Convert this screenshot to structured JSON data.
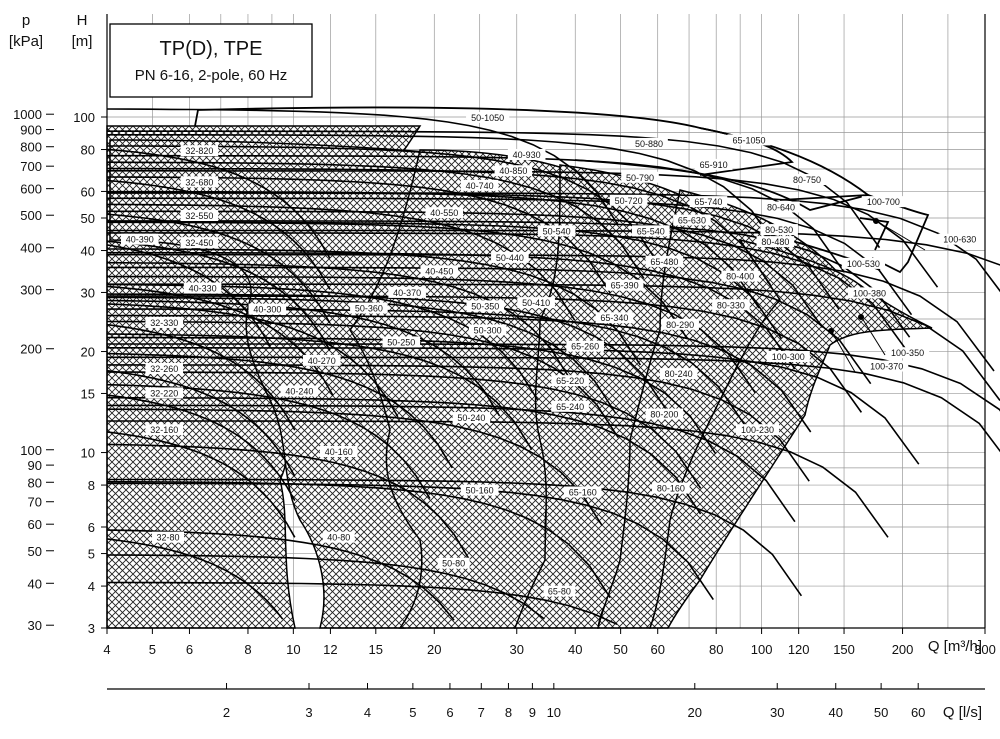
{
  "chart_data": {
    "type": "pump-performance-chart",
    "title": "TP(D), TPE",
    "subtitle": "PN 6-16, 2-pole,  60 Hz",
    "axes": {
      "y_left_outer": {
        "symbol": "p",
        "unit": "[kPa]",
        "ticks": [
          "1000",
          "900",
          "800",
          "700",
          "600",
          "500",
          "400",
          "300",
          "200",
          "100",
          "90",
          "80",
          "70",
          "60",
          "50",
          "40",
          "30"
        ]
      },
      "y_left_inner": {
        "symbol": "H",
        "unit": "[m]",
        "ticks": [
          "100",
          "80",
          "60",
          "50",
          "40",
          "30",
          "20",
          "15",
          "10",
          "8",
          "6",
          "5",
          "4",
          "3"
        ]
      },
      "x_bottom": {
        "label": "Q [m³/h]",
        "ticks": [
          "4",
          "5",
          "6",
          "8",
          "10",
          "12",
          "15",
          "20",
          "30",
          "40",
          "50",
          "60",
          "80",
          "100",
          "120",
          "150",
          "200",
          "300"
        ]
      },
      "x_second": {
        "label": "Q [l/s]",
        "ticks": [
          "2",
          "3",
          "4",
          "5",
          "6",
          "7",
          "8",
          "9",
          "10",
          "20",
          "30",
          "40",
          "50",
          "60"
        ]
      },
      "x_scale": "log",
      "y_scale": "log",
      "x_range": [
        4,
        300
      ],
      "y_range": [
        3,
        105
      ]
    },
    "pumps": [
      {
        "label": "32-80",
        "family": "32",
        "x": 5.4,
        "y": 5.5
      },
      {
        "label": "32-160",
        "family": "32",
        "x": 5.3,
        "y": 11.5
      },
      {
        "label": "32-220",
        "family": "32",
        "x": 5.3,
        "y": 14.8
      },
      {
        "label": "32-260",
        "family": "32",
        "x": 5.3,
        "y": 17.5
      },
      {
        "label": "32-330",
        "family": "32",
        "x": 5.3,
        "y": 24.0
      },
      {
        "label": "32-450",
        "family": "32",
        "x": 6.3,
        "y": 41.5
      },
      {
        "label": "32-550",
        "family": "32",
        "x": 6.3,
        "y": 50.0
      },
      {
        "label": "32-680",
        "family": "32",
        "x": 6.3,
        "y": 63.0
      },
      {
        "label": "32-820",
        "family": "32",
        "x": 6.3,
        "y": 78.0
      },
      {
        "label": "40-80",
        "family": "40",
        "x": 12.5,
        "y": 5.5
      },
      {
        "label": "40-160",
        "family": "40",
        "x": 12.5,
        "y": 9.9
      },
      {
        "label": "40-240",
        "family": "40",
        "x": 10.3,
        "y": 15.0
      },
      {
        "label": "40-270",
        "family": "40",
        "x": 11.5,
        "y": 18.5
      },
      {
        "label": "40-300",
        "family": "40",
        "x": 8.8,
        "y": 26.3
      },
      {
        "label": "40-330",
        "family": "40",
        "x": 6.4,
        "y": 30.4
      },
      {
        "label": "40-370",
        "family": "40",
        "x": 17.5,
        "y": 29.5
      },
      {
        "label": "40-390",
        "family": "40",
        "x": 4.7,
        "y": 42.5
      },
      {
        "label": "40-450",
        "family": "40",
        "x": 20.5,
        "y": 34.2
      },
      {
        "label": "40-550",
        "family": "40",
        "x": 21.0,
        "y": 51.0
      },
      {
        "label": "40-740",
        "family": "40",
        "x": 25.0,
        "y": 61.5
      },
      {
        "label": "40-850",
        "family": "40",
        "x": 29.5,
        "y": 68.0
      },
      {
        "label": "40-930",
        "family": "40",
        "x": 31.5,
        "y": 76.0
      },
      {
        "label": "50-80",
        "family": "50",
        "x": 22.0,
        "y": 4.6
      },
      {
        "label": "50-160",
        "family": "50",
        "x": 25.0,
        "y": 7.6
      },
      {
        "label": "50-240",
        "family": "50",
        "x": 24.0,
        "y": 12.5
      },
      {
        "label": "50-250",
        "family": "50",
        "x": 17.0,
        "y": 21.0
      },
      {
        "label": "50-300",
        "family": "50",
        "x": 26.0,
        "y": 22.8
      },
      {
        "label": "50-350",
        "family": "50",
        "x": 25.7,
        "y": 26.9
      },
      {
        "label": "50-360",
        "family": "50",
        "x": 14.5,
        "y": 26.5
      },
      {
        "label": "50-410",
        "family": "50",
        "x": 33.0,
        "y": 27.5
      },
      {
        "label": "50-440",
        "family": "50",
        "x": 29.0,
        "y": 37.5
      },
      {
        "label": "50-540",
        "family": "50",
        "x": 36.5,
        "y": 45.0
      },
      {
        "label": "50-720",
        "family": "50",
        "x": 52.0,
        "y": 55.5
      },
      {
        "label": "50-790",
        "family": "50",
        "x": 55.0,
        "y": 65.0
      },
      {
        "label": "50-880",
        "family": "50",
        "x": 57.5,
        "y": 82.0
      },
      {
        "label": "50-1050",
        "family": "50",
        "x": 26.0,
        "y": 98.0
      },
      {
        "label": "65-80",
        "family": "65",
        "x": 37.0,
        "y": 3.8
      },
      {
        "label": "65-160",
        "family": "65",
        "x": 41.5,
        "y": 7.5
      },
      {
        "label": "65-220",
        "family": "65",
        "x": 39.0,
        "y": 16.1
      },
      {
        "label": "65-240",
        "family": "65",
        "x": 39.0,
        "y": 13.5
      },
      {
        "label": "65-260",
        "family": "65",
        "x": 42.0,
        "y": 20.4
      },
      {
        "label": "65-340",
        "family": "65",
        "x": 48.5,
        "y": 24.8
      },
      {
        "label": "65-390",
        "family": "65",
        "x": 51.0,
        "y": 31.0
      },
      {
        "label": "65-480",
        "family": "65",
        "x": 62.0,
        "y": 36.5
      },
      {
        "label": "65-540",
        "family": "65",
        "x": 58.0,
        "y": 45.0
      },
      {
        "label": "65-630",
        "family": "65",
        "x": 71.0,
        "y": 48.5
      },
      {
        "label": "65-740",
        "family": "65",
        "x": 77.0,
        "y": 55.0
      },
      {
        "label": "65-910",
        "family": "65",
        "x": 79.0,
        "y": 71.0
      },
      {
        "label": "65-1050",
        "family": "65",
        "x": 94.0,
        "y": 84.0
      },
      {
        "label": "80-160",
        "family": "80",
        "x": 64.0,
        "y": 7.7
      },
      {
        "label": "80-200",
        "family": "80",
        "x": 62.0,
        "y": 12.8
      },
      {
        "label": "80-240",
        "family": "80",
        "x": 66.5,
        "y": 16.9
      },
      {
        "label": "80-290",
        "family": "80",
        "x": 67.0,
        "y": 23.7
      },
      {
        "label": "80-330",
        "family": "80",
        "x": 86.0,
        "y": 27.1
      },
      {
        "label": "80-400",
        "family": "80",
        "x": 90.0,
        "y": 33.0
      },
      {
        "label": "80-480",
        "family": "80",
        "x": 107.0,
        "y": 41.8
      },
      {
        "label": "80-530",
        "family": "80",
        "x": 109.0,
        "y": 45.4
      },
      {
        "label": "80-640",
        "family": "80",
        "x": 110.0,
        "y": 53.0
      },
      {
        "label": "80-750",
        "family": "80",
        "x": 125.0,
        "y": 64.0
      },
      {
        "label": "100-230",
        "family": "100",
        "x": 98.0,
        "y": 11.5
      },
      {
        "label": "100-300",
        "family": "100",
        "x": 114.0,
        "y": 19.0
      },
      {
        "label": "100-350",
        "family": "100",
        "x": 205.0,
        "y": 19.5
      },
      {
        "label": "100-370",
        "family": "100",
        "x": 185.0,
        "y": 17.8
      },
      {
        "label": "100-380",
        "family": "100",
        "x": 170.0,
        "y": 29.4
      },
      {
        "label": "100-530",
        "family": "100",
        "x": 165.0,
        "y": 36.0
      },
      {
        "label": "100-630",
        "family": "100",
        "x": 265.0,
        "y": 42.5
      },
      {
        "label": "100-700",
        "family": "100",
        "x": 182.0,
        "y": 55.0
      }
    ]
  }
}
